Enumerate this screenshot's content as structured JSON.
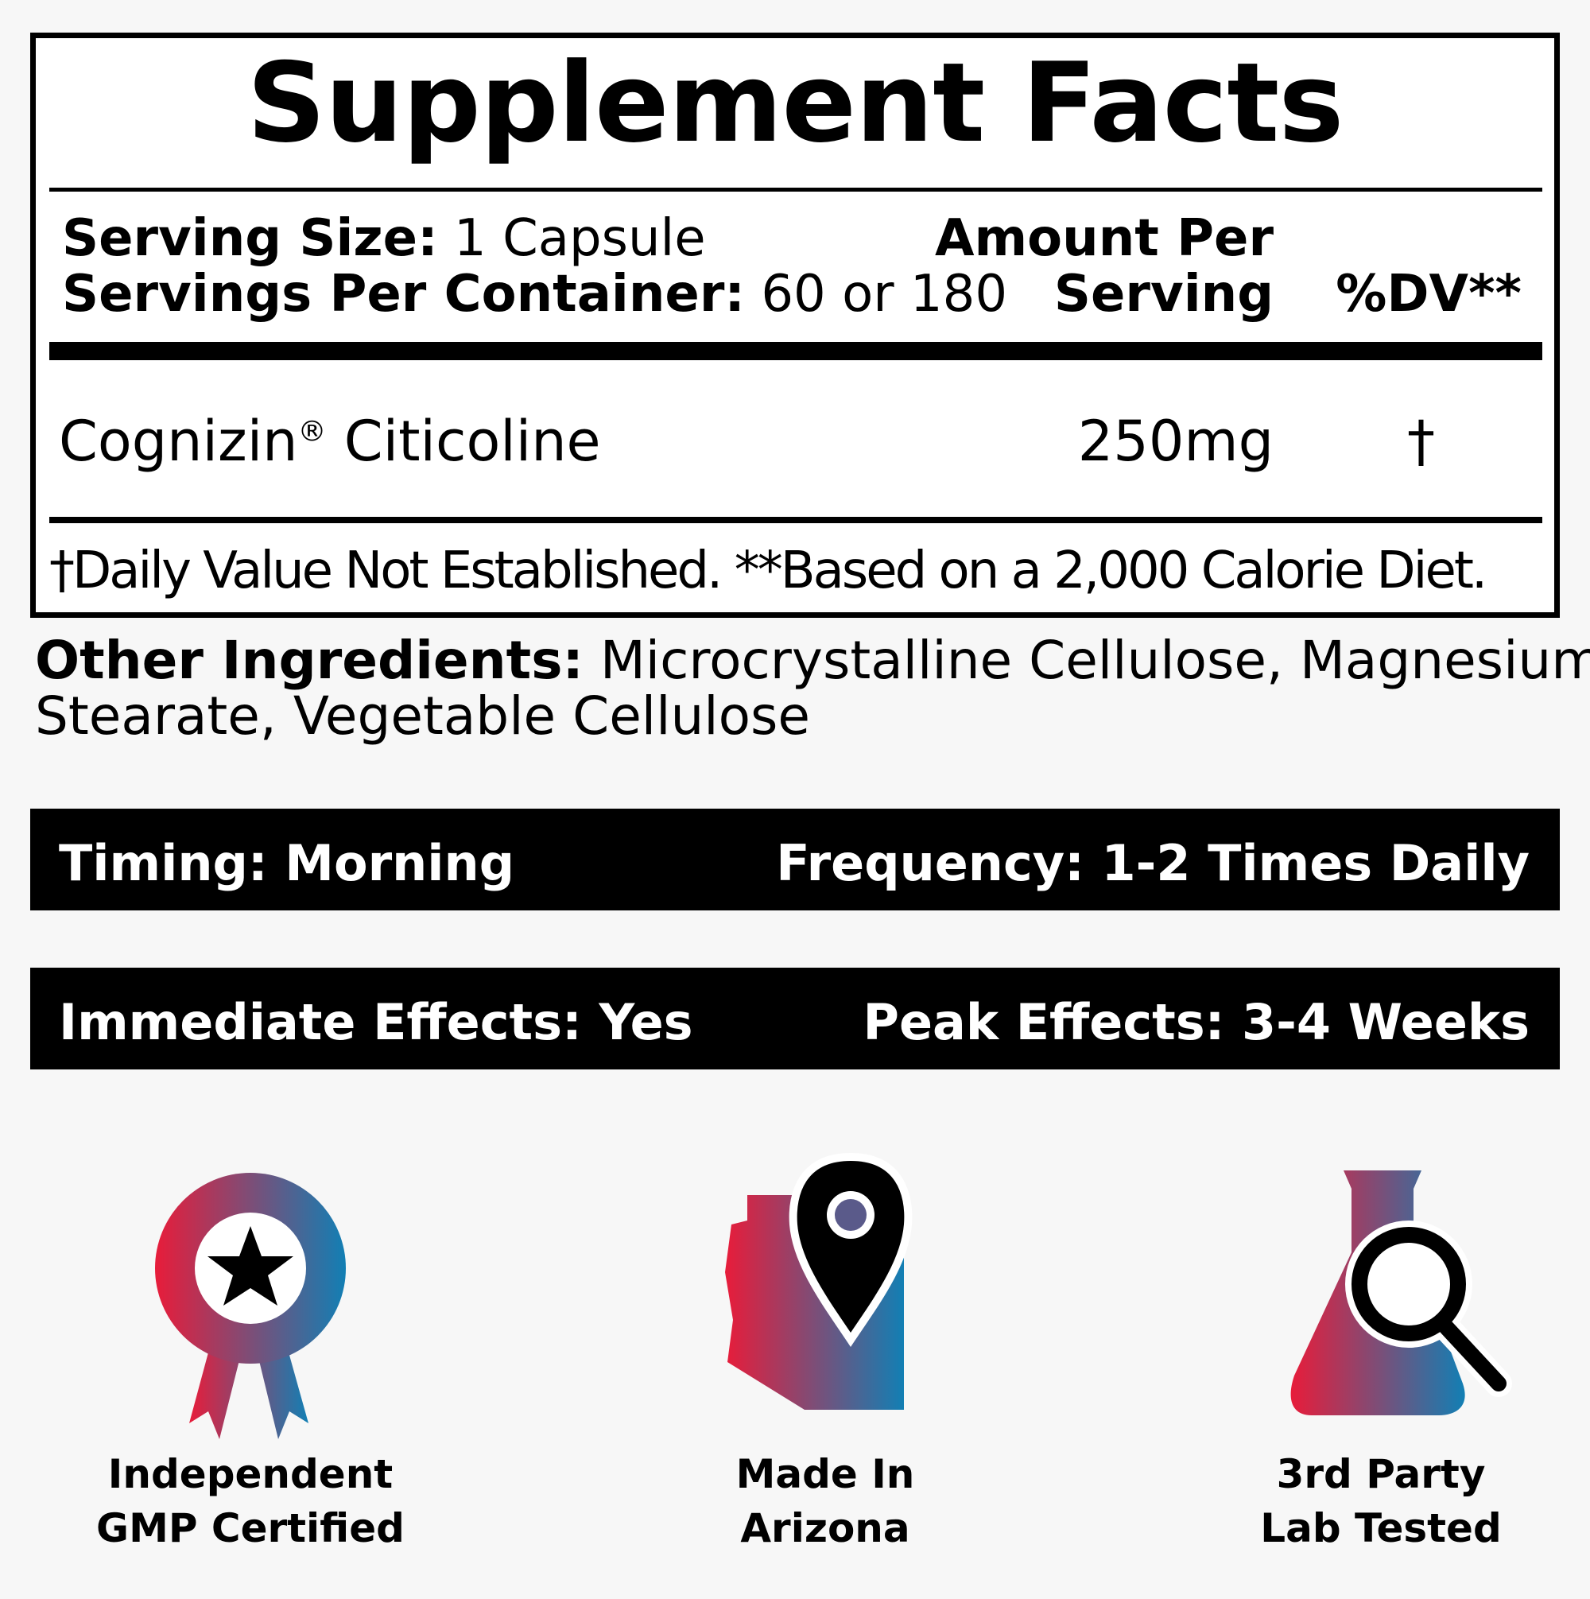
{
  "title": "Supplement Facts",
  "serving": {
    "size_label": "Serving Size:",
    "size_value": "1 Capsule",
    "per_container_label": "Servings Per Container:",
    "per_container_value": "60 or 180"
  },
  "columns": {
    "amount_line1": "Amount Per",
    "amount_line2": "Serving",
    "dv": "%DV**"
  },
  "ingredients": [
    {
      "name": "Cognizin",
      "reg": "®",
      "name_rest": " Citicoline",
      "amount": "250mg",
      "dv": "†"
    }
  ],
  "footnote": "†Daily Value Not Established. **Based on a 2,000 Calorie Diet.",
  "other": {
    "label": "Other Ingredients:",
    "line1": "Microcrystalline Cellulose,  Magnesium",
    "line2": "Stearate, Vegetable Cellulose"
  },
  "bars": [
    {
      "left": "Timing: Morning",
      "right": "Frequency: 1-2 Times Daily"
    },
    {
      "left": "Immediate Effects: Yes",
      "right": "Peak Effects: 3-4 Weeks"
    }
  ],
  "badges": [
    {
      "icon": "award-ribbon-star-icon",
      "line1": "Independent",
      "line2": "GMP Certified"
    },
    {
      "icon": "arizona-map-pin-icon",
      "line1": "Made In",
      "line2": "Arizona"
    },
    {
      "icon": "flask-magnifier-icon",
      "line1": "3rd Party",
      "line2": "Lab Tested"
    }
  ],
  "colors": {
    "gradient_start": "#e81c3a",
    "gradient_end": "#127fb4"
  }
}
